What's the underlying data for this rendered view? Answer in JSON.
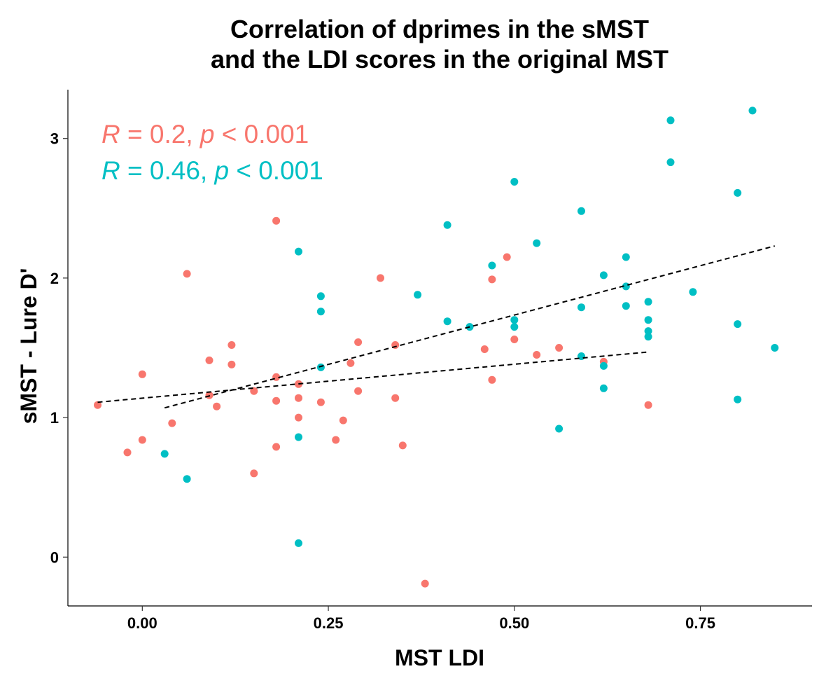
{
  "chart_data": {
    "type": "scatter",
    "title": [
      "Correlation of dprimes in the sMST",
      "and the LDI scores in the original MST"
    ],
    "xlabel": "MST LDI",
    "ylabel": "sMST - Lure D'",
    "xlim": [
      -0.1,
      0.9
    ],
    "ylim": [
      -0.35,
      3.35
    ],
    "x_ticks": [
      0.0,
      0.25,
      0.5,
      0.75
    ],
    "x_tick_labels": [
      "0.00",
      "0.25",
      "0.50",
      "0.75"
    ],
    "y_ticks": [
      0,
      1,
      2,
      3
    ],
    "y_tick_labels": [
      "0",
      "1",
      "2",
      "3"
    ],
    "grid": false,
    "annotations": [
      {
        "R_label": "R",
        "R_value": " = 0.2, ",
        "p_label": "p",
        "p_value": " < 0.001",
        "color": "#F8766D"
      },
      {
        "R_label": "R",
        "R_value": " = 0.46, ",
        "p_label": "p",
        "p_value": " < 0.001",
        "color": "#00BFC4"
      }
    ],
    "series": [
      {
        "color": "#F8766D",
        "points": [
          [
            -0.06,
            1.09
          ],
          [
            -0.02,
            0.75
          ],
          [
            0.0,
            0.84
          ],
          [
            0.0,
            1.31
          ],
          [
            0.04,
            0.96
          ],
          [
            0.06,
            2.03
          ],
          [
            0.09,
            1.41
          ],
          [
            0.09,
            1.16
          ],
          [
            0.1,
            1.08
          ],
          [
            0.12,
            1.38
          ],
          [
            0.12,
            1.52
          ],
          [
            0.15,
            1.19
          ],
          [
            0.15,
            0.6
          ],
          [
            0.18,
            0.79
          ],
          [
            0.18,
            1.12
          ],
          [
            0.18,
            1.29
          ],
          [
            0.18,
            2.41
          ],
          [
            0.21,
            1.24
          ],
          [
            0.21,
            1.0
          ],
          [
            0.21,
            1.14
          ],
          [
            0.24,
            1.11
          ],
          [
            0.26,
            0.84
          ],
          [
            0.27,
            0.98
          ],
          [
            0.28,
            1.39
          ],
          [
            0.29,
            1.19
          ],
          [
            0.29,
            1.54
          ],
          [
            0.32,
            2.0
          ],
          [
            0.34,
            1.14
          ],
          [
            0.34,
            1.52
          ],
          [
            0.35,
            0.8
          ],
          [
            0.38,
            -0.19
          ],
          [
            0.46,
            1.49
          ],
          [
            0.47,
            1.27
          ],
          [
            0.47,
            1.99
          ],
          [
            0.49,
            2.15
          ],
          [
            0.5,
            1.56
          ],
          [
            0.53,
            1.45
          ],
          [
            0.56,
            1.5
          ],
          [
            0.62,
            1.4
          ],
          [
            0.68,
            1.09
          ]
        ],
        "trend": [
          [
            -0.06,
            1.11
          ],
          [
            0.68,
            1.47
          ]
        ]
      },
      {
        "color": "#00BFC4",
        "points": [
          [
            0.03,
            0.74
          ],
          [
            0.06,
            0.56
          ],
          [
            0.21,
            2.19
          ],
          [
            0.21,
            0.86
          ],
          [
            0.21,
            0.1
          ],
          [
            0.24,
            1.87
          ],
          [
            0.24,
            1.76
          ],
          [
            0.24,
            1.36
          ],
          [
            0.37,
            1.88
          ],
          [
            0.41,
            2.38
          ],
          [
            0.41,
            1.69
          ],
          [
            0.44,
            1.65
          ],
          [
            0.47,
            2.09
          ],
          [
            0.5,
            2.69
          ],
          [
            0.5,
            1.7
          ],
          [
            0.5,
            1.65
          ],
          [
            0.53,
            2.25
          ],
          [
            0.56,
            0.92
          ],
          [
            0.59,
            2.48
          ],
          [
            0.59,
            1.79
          ],
          [
            0.59,
            1.44
          ],
          [
            0.62,
            2.02
          ],
          [
            0.62,
            1.37
          ],
          [
            0.62,
            1.21
          ],
          [
            0.65,
            2.15
          ],
          [
            0.65,
            1.94
          ],
          [
            0.65,
            1.8
          ],
          [
            0.68,
            1.83
          ],
          [
            0.68,
            1.7
          ],
          [
            0.68,
            1.62
          ],
          [
            0.68,
            1.58
          ],
          [
            0.71,
            3.13
          ],
          [
            0.71,
            2.83
          ],
          [
            0.74,
            1.9
          ],
          [
            0.8,
            2.61
          ],
          [
            0.8,
            1.67
          ],
          [
            0.8,
            1.13
          ],
          [
            0.82,
            3.2
          ],
          [
            0.85,
            1.5
          ]
        ],
        "trend": [
          [
            0.03,
            1.07
          ],
          [
            0.85,
            2.23
          ]
        ]
      }
    ]
  }
}
